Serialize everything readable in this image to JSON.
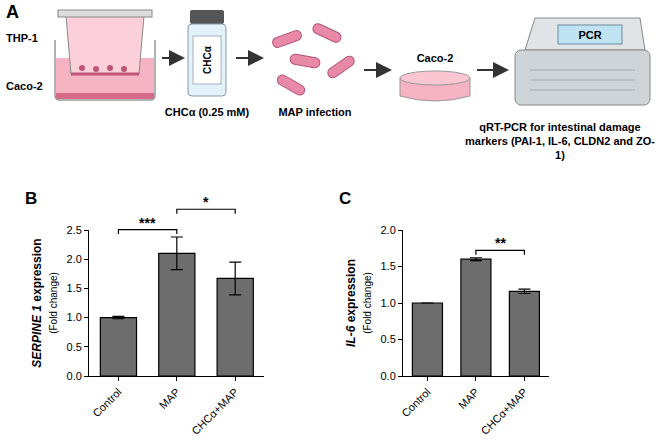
{
  "diagram": {
    "panel": "A",
    "steps": [
      {
        "labels": [
          "THP-1",
          "Caco-2"
        ]
      },
      {
        "vial_label": "CHCα",
        "label": "CHCα (0.25 mM)"
      },
      {
        "label": "MAP infection"
      },
      {
        "label": "Caco-2"
      },
      {
        "screen": "PCR",
        "label": "qRT-PCR for intestinal damage markers (PAI-1, IL-6, CLDN2 and ZO-1)"
      }
    ]
  },
  "chart_data": [
    {
      "type": "bar",
      "panel": "B",
      "y_label": "SERPINE 1 expression",
      "y_sublabel": "(Fold change)",
      "categories": [
        "Control",
        "MAP",
        "CHCα+MAP"
      ],
      "values": [
        1.0,
        2.1,
        1.67
      ],
      "errors": [
        0.02,
        0.28,
        0.28
      ],
      "color": "#6d6d6d",
      "ylim": [
        0,
        2.5
      ],
      "yticks": [
        {
          "value": 0,
          "label": "0.0"
        },
        0.5,
        {
          "value": 1,
          "label": "1.0"
        },
        1.5,
        {
          "value": 2,
          "label": "2.0"
        },
        2.5
      ],
      "grid": false,
      "significance": [
        {
          "from": "Control",
          "to": "MAP",
          "text": "***"
        },
        {
          "from": "MAP",
          "to": "CHCα+MAP",
          "text": "*"
        }
      ]
    },
    {
      "type": "bar",
      "panel": "C",
      "y_label": "IL-6 expression",
      "y_sublabel": "(Fold change)",
      "categories": [
        "Control",
        "MAP",
        "CHCα+MAP"
      ],
      "values": [
        1.0,
        1.6,
        1.16
      ],
      "errors": [
        0,
        0.02,
        0.03
      ],
      "color": "#6d6d6d",
      "ylim": [
        0,
        2.0
      ],
      "yticks": [
        {
          "value": 0,
          "label": "0.0"
        },
        0.5,
        {
          "value": 1,
          "label": "1.0"
        },
        1.5,
        {
          "value": 2,
          "label": "2.0"
        }
      ],
      "grid": false,
      "significance": [
        {
          "from": "MAP",
          "to": "CHCα+MAP",
          "text": "**"
        }
      ]
    }
  ]
}
